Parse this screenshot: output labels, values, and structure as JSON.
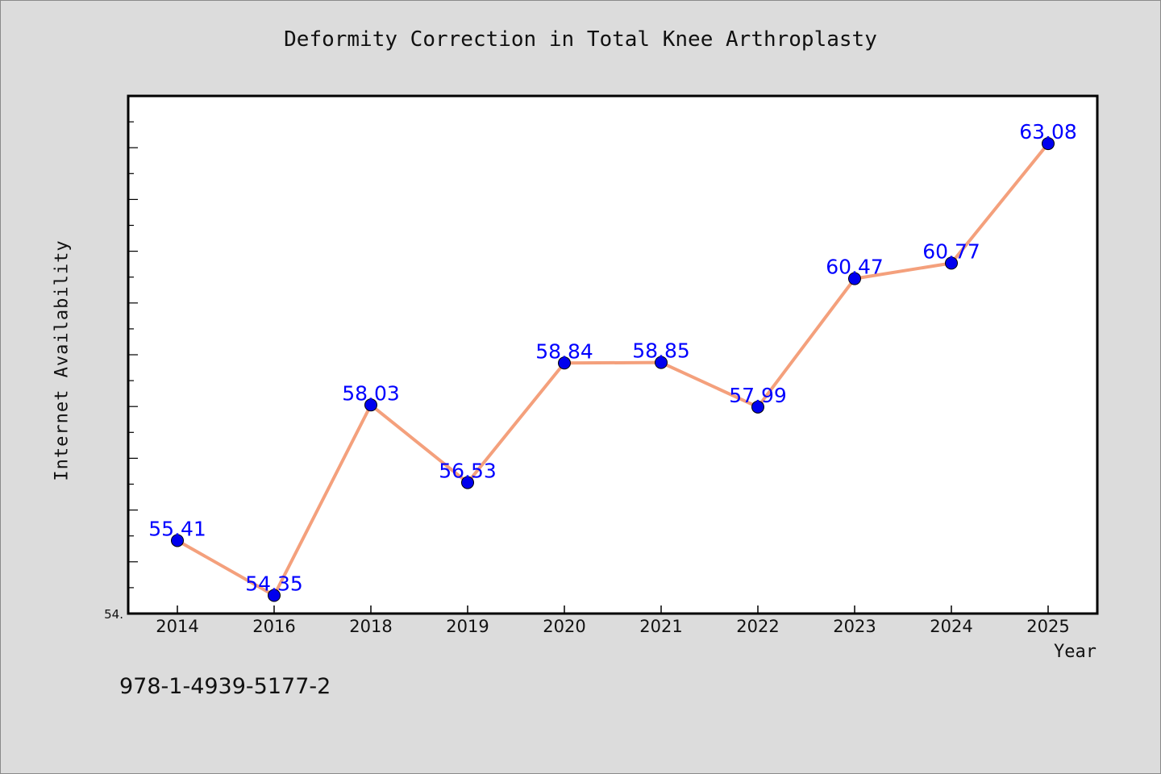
{
  "chart_data": {
    "type": "line",
    "title": "Deformity Correction in Total Knee Arthroplasty",
    "xlabel": "Year",
    "ylabel": "Internet Availability",
    "categories": [
      "2014",
      "2016",
      "2018",
      "2019",
      "2020",
      "2021",
      "2022",
      "2023",
      "2024",
      "2025"
    ],
    "values": [
      55.41,
      54.35,
      58.03,
      56.53,
      58.84,
      58.85,
      57.99,
      60.47,
      60.77,
      63.08
    ],
    "data_labels": [
      "55.41",
      "54.35",
      "58.03",
      "56.53",
      "58.84",
      "58.85",
      "57.99",
      "60.47",
      "60.77",
      "63.08"
    ],
    "ylim": [
      54,
      64
    ],
    "y_min_label": "54.",
    "line_color": "#f4a07c",
    "marker_color": "#0000ee",
    "label_color": "#0000ff",
    "grid": false,
    "legend": "none"
  },
  "footer": {
    "isbn": "978-1-4939-5177-2"
  }
}
